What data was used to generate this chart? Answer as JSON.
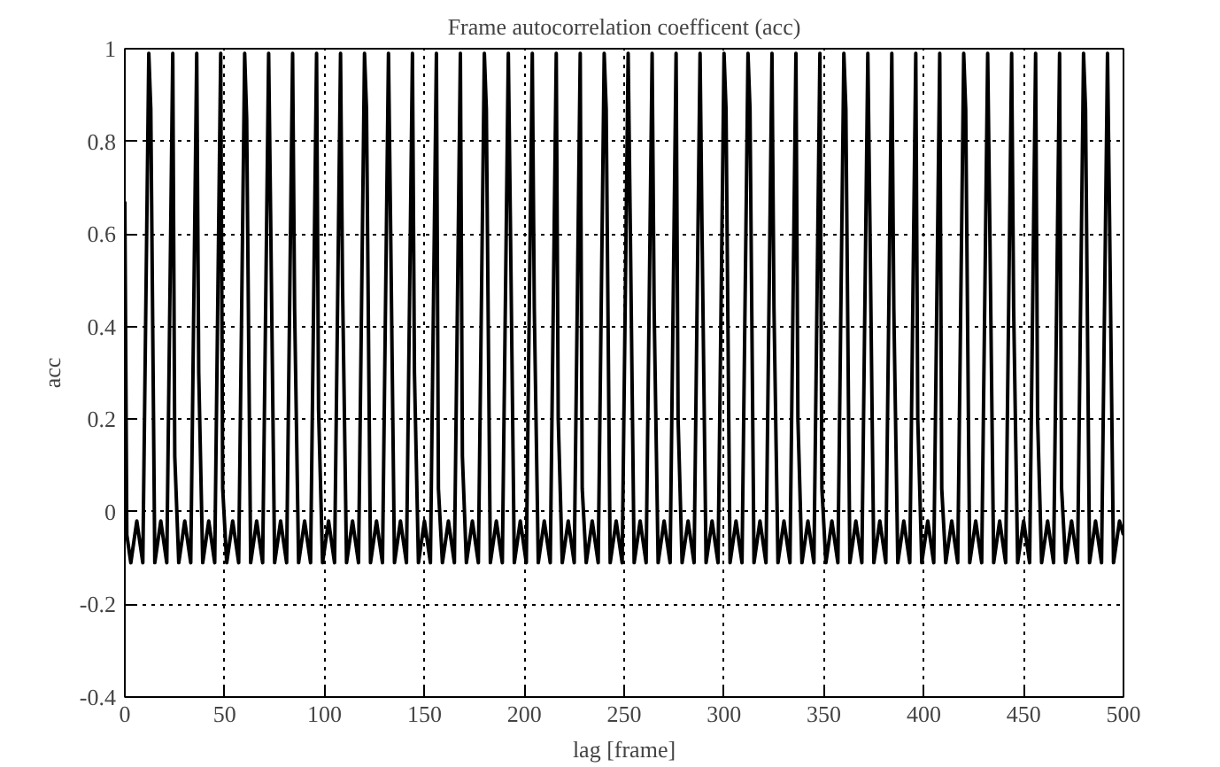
{
  "chart_data": {
    "type": "line",
    "title": "Frame autocorrelation coefficent (acc)",
    "xlabel": "lag [frame]",
    "ylabel": "acc",
    "x": [
      0,
      1,
      3,
      6,
      9,
      12,
      13,
      15,
      18,
      21,
      24,
      25,
      27,
      30,
      33,
      36,
      37,
      39,
      42,
      45,
      48,
      49,
      51,
      54,
      57,
      60,
      61,
      63,
      66,
      69,
      72,
      73,
      75,
      78,
      81,
      84,
      85,
      87,
      90,
      93,
      96,
      97,
      99,
      102,
      105,
      108,
      109,
      111,
      114,
      117,
      120,
      121,
      123,
      126,
      129,
      132,
      133,
      135,
      138,
      141,
      144,
      145,
      147,
      150,
      153,
      156,
      157,
      159,
      162,
      165,
      168,
      169,
      171,
      174,
      177,
      180,
      181,
      183,
      186,
      189,
      192,
      193,
      195,
      198,
      201,
      204,
      205,
      207,
      210,
      213,
      216,
      217,
      219,
      222,
      225,
      228,
      229,
      231,
      234,
      237,
      240,
      241,
      243,
      246,
      249,
      252,
      253,
      255,
      258,
      261,
      264,
      265,
      267,
      270,
      273,
      276,
      277,
      279,
      282,
      285,
      288,
      289,
      291,
      294,
      297,
      300,
      301,
      303,
      306,
      309,
      312,
      313,
      315,
      318,
      321,
      324,
      325,
      327,
      330,
      333,
      336,
      337,
      339,
      342,
      345,
      348,
      349,
      351,
      354,
      357,
      360,
      361,
      363,
      366,
      369,
      372,
      373,
      375,
      378,
      381,
      384,
      385,
      387,
      390,
      393,
      396,
      397,
      399,
      402,
      405,
      408,
      409,
      411,
      414,
      417,
      420,
      421,
      423,
      426,
      429,
      432,
      433,
      435,
      438,
      441,
      444,
      445,
      447,
      450,
      453,
      456,
      457,
      459,
      462,
      465,
      468,
      469,
      471,
      474,
      477,
      480,
      481,
      483,
      486,
      489,
      492,
      493,
      495,
      498,
      500
    ],
    "series": [
      {
        "color": "#000000",
        "values": [
          0.67,
          -0.05,
          -0.11,
          -0.02,
          -0.11,
          0.99,
          0.87,
          -0.11,
          -0.02,
          -0.11,
          0.99,
          0.12,
          -0.11,
          -0.02,
          -0.11,
          0.99,
          0.3,
          -0.11,
          -0.02,
          -0.11,
          0.99,
          0.05,
          -0.11,
          -0.02,
          -0.11,
          0.99,
          0.85,
          -0.11,
          -0.02,
          -0.11,
          0.99,
          0.64,
          -0.11,
          -0.02,
          -0.11,
          0.99,
          0.44,
          -0.11,
          -0.02,
          -0.11,
          0.99,
          0.22,
          -0.11,
          -0.02,
          -0.11,
          0.99,
          0.49,
          -0.11,
          -0.02,
          -0.11,
          0.99,
          0.87,
          -0.11,
          -0.02,
          -0.11,
          0.99,
          0.64,
          -0.11,
          -0.02,
          -0.11,
          0.99,
          0.3,
          -0.11,
          -0.02,
          -0.11,
          0.99,
          0.05,
          -0.11,
          -0.02,
          -0.11,
          0.99,
          0.12,
          -0.11,
          -0.02,
          -0.11,
          0.99,
          0.87,
          -0.11,
          -0.02,
          -0.11,
          0.99,
          0.64,
          -0.11,
          -0.02,
          -0.11,
          0.99,
          0.44,
          -0.11,
          -0.02,
          -0.11,
          0.99,
          0.2,
          -0.11,
          -0.02,
          -0.11,
          0.99,
          0.05,
          -0.11,
          -0.02,
          -0.11,
          0.99,
          0.87,
          -0.11,
          -0.02,
          -0.11,
          0.99,
          0.64,
          -0.11,
          -0.02,
          -0.11,
          0.99,
          0.44,
          -0.11,
          -0.02,
          -0.11,
          0.99,
          0.2,
          -0.11,
          -0.02,
          -0.11,
          0.99,
          0.6,
          -0.11,
          -0.02,
          -0.11,
          0.99,
          0.87,
          -0.11,
          -0.02,
          -0.11,
          0.99,
          0.87,
          -0.11,
          -0.02,
          -0.11,
          0.99,
          0.44,
          -0.11,
          -0.02,
          -0.11,
          0.99,
          0.2,
          -0.11,
          -0.02,
          -0.11,
          0.99,
          0.05,
          -0.11,
          -0.02,
          -0.11,
          0.99,
          0.87,
          -0.11,
          -0.02,
          -0.11,
          0.99,
          0.64,
          -0.11,
          -0.02,
          -0.11,
          0.99,
          0.44,
          -0.11,
          -0.02,
          -0.11,
          0.99,
          0.2,
          -0.11,
          -0.02,
          -0.11,
          0.99,
          0.05,
          -0.11,
          -0.02,
          -0.11,
          0.99,
          0.87,
          -0.11,
          -0.02,
          -0.11,
          0.99,
          0.64,
          -0.11,
          -0.02,
          -0.11,
          0.99,
          0.44,
          -0.11,
          -0.02,
          -0.11,
          0.99,
          0.2,
          -0.11,
          -0.02,
          -0.11,
          0.99,
          0.05,
          -0.11,
          -0.02,
          -0.11,
          0.99,
          0.87,
          -0.11,
          -0.02,
          -0.11,
          0.99,
          0.64,
          -0.11,
          -0.02,
          -0.05
        ]
      }
    ],
    "xlim": [
      0,
      500
    ],
    "xticks": [
      0,
      50,
      100,
      150,
      200,
      250,
      300,
      350,
      400,
      450,
      500
    ],
    "ylim": [
      -0.4,
      1
    ],
    "yticks": [
      -0.4,
      -0.2,
      0,
      0.2,
      0.4,
      0.6,
      0.8,
      1
    ],
    "grid": true,
    "marker": "none",
    "line_style": "solid"
  }
}
